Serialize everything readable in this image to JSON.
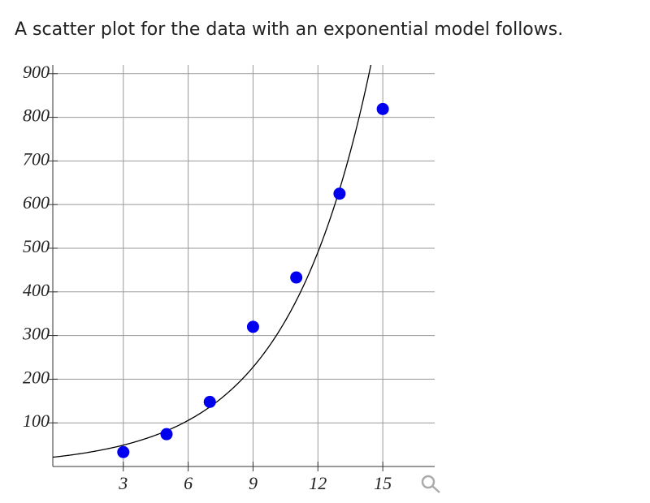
{
  "intro": "A scatter plot for the data with an exponential model follows.",
  "chart_data": {
    "type": "scatter",
    "x": [
      3,
      5,
      7,
      9,
      11,
      13,
      15
    ],
    "values": [
      33,
      74,
      148,
      320,
      433,
      625,
      819
    ],
    "color": "#0000ee",
    "model": {
      "a": 22.7,
      "b": 1.292
    },
    "xlim": [
      -0.26,
      17.4
    ],
    "ylim": [
      0,
      920
    ],
    "xticks": [
      3,
      6,
      9,
      12,
      15
    ],
    "yticks": [
      100,
      200,
      300,
      400,
      500,
      600,
      700,
      800,
      900
    ],
    "grid": true
  }
}
